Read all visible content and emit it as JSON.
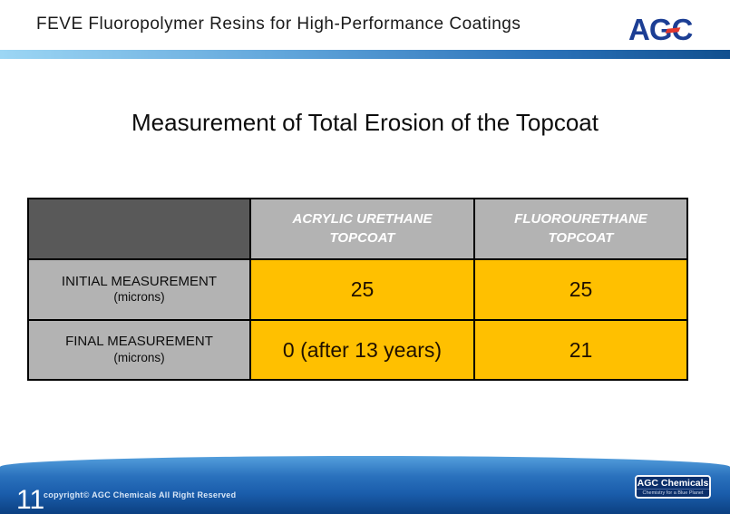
{
  "slide": {
    "header": {
      "title": "FEVE Fluoropolymer Resins for High-Performance Coatings",
      "logo_text": "AGC"
    },
    "title": "Measurement of Total Erosion of the Topcoat",
    "table": {
      "col_headers": [
        "ACRYLIC URETHANE TOPCOAT",
        "FLUOROURETHANE TOPCOAT"
      ],
      "rows": [
        {
          "label": "INITIAL MEASUREMENT",
          "sublabel": "(microns)",
          "values": [
            "25",
            "25"
          ]
        },
        {
          "label": "FINAL MEASUREMENT",
          "sublabel": "(microns)",
          "values": [
            "0 (after 13 years)",
            "21"
          ]
        }
      ]
    },
    "footer": {
      "page_number": "11",
      "copyright": "copyright© AGC Chemicals  All Right Reserved",
      "badge_title": "AGC Chemicals",
      "badge_tagline": "Chemistry for a Blue Planet"
    },
    "colors": {
      "value_cell": "#ffc000",
      "corner_cell": "#595959",
      "gray_cell": "#b3b3b3",
      "logo_navy": "#1c3e94",
      "logo_red": "#e3372e",
      "footer_blue": "#1a5dab"
    }
  },
  "chart_data": {
    "type": "table",
    "title": "Measurement of Total Erosion of the Topcoat",
    "columns": [
      "ACRYLIC URETHANE TOPCOAT",
      "FLUOROURETHANE TOPCOAT"
    ],
    "rows": [
      {
        "label": "INITIAL MEASUREMENT (microns)",
        "values": [
          "25",
          "25"
        ]
      },
      {
        "label": "FINAL MEASUREMENT (microns)",
        "values": [
          "0 (after 13 years)",
          "21"
        ]
      }
    ]
  }
}
